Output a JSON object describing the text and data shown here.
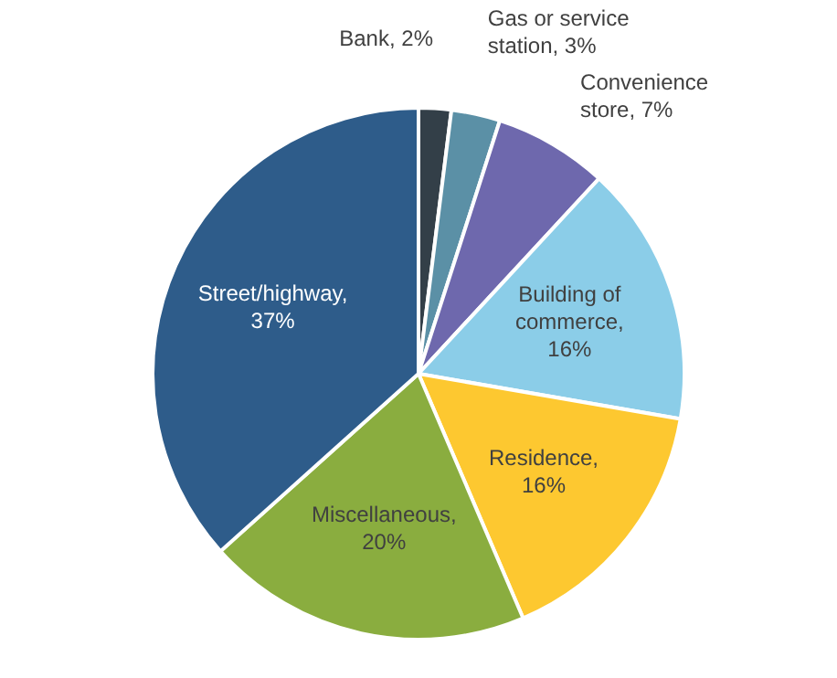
{
  "chart_data": {
    "type": "pie",
    "categories": [
      "Bank, 2%",
      "Gas or service station, 3%",
      "Convenience store, 7%",
      "Building of commerce, 16%",
      "Residence, 16%",
      "Miscellaneous, 20%",
      "Street/highway, 37%"
    ],
    "values": [
      2,
      3,
      7,
      16,
      16,
      20,
      37
    ],
    "colors": [
      "#333f48",
      "#5b90a6",
      "#6e68ad",
      "#8bcde8",
      "#fdc830",
      "#8aad3f",
      "#2e5c8a"
    ],
    "legend": false
  }
}
